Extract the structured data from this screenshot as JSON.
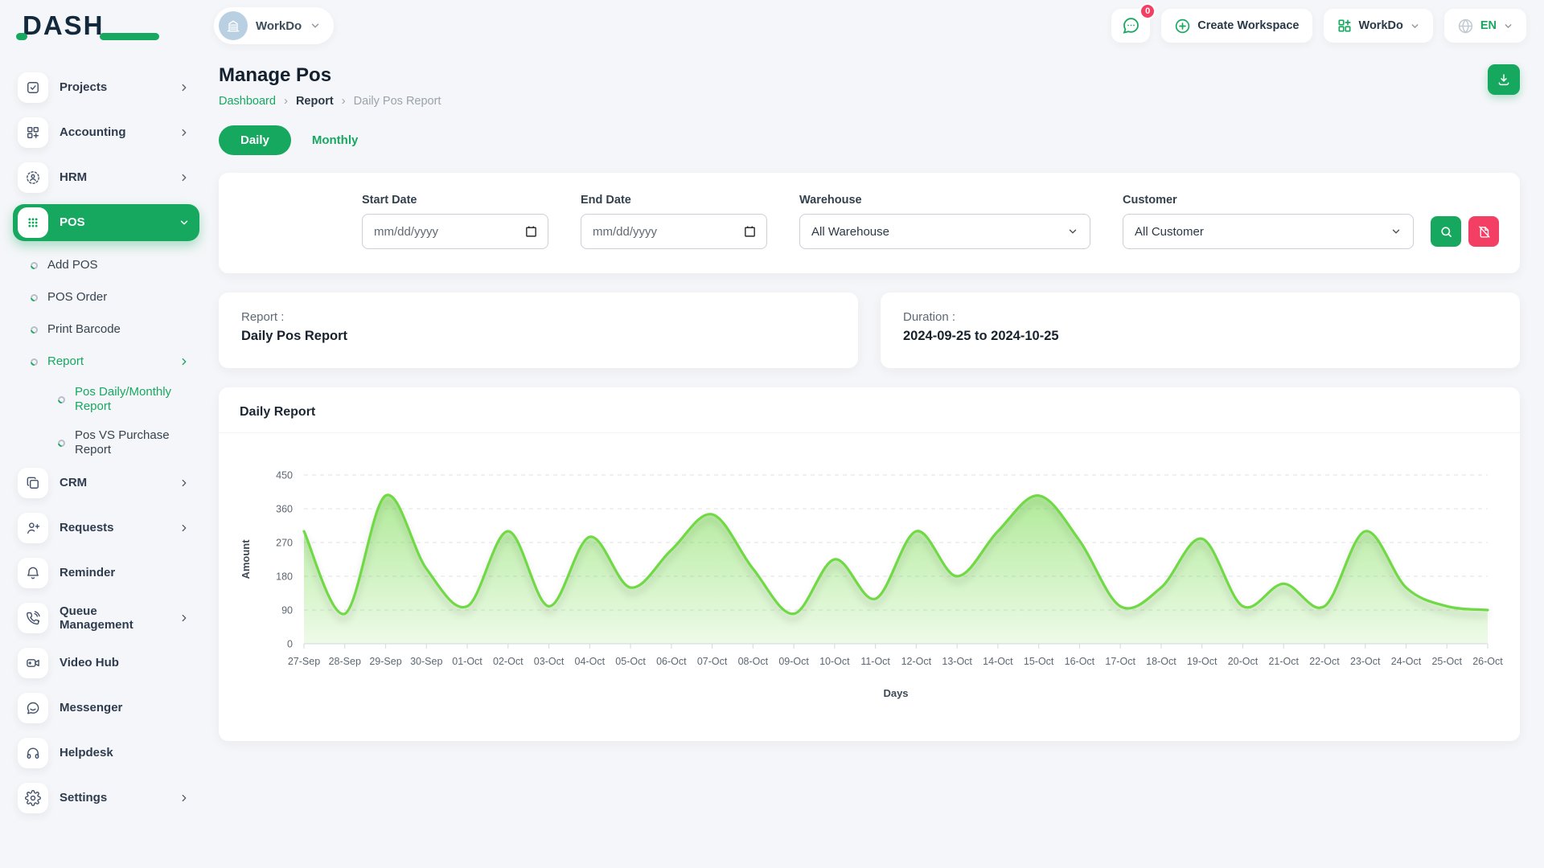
{
  "brand": {
    "name": "DASH"
  },
  "topbar": {
    "workspace_selector": "WorkDo",
    "messages_badge": "0",
    "create_workspace_label": "Create Workspace",
    "workspace_menu_label": "WorkDo",
    "language": "EN"
  },
  "sidebar": {
    "items": [
      {
        "label": "Projects"
      },
      {
        "label": "Accounting"
      },
      {
        "label": "HRM"
      },
      {
        "label": "POS"
      },
      {
        "label": "Add POS"
      },
      {
        "label": "POS Order"
      },
      {
        "label": "Print Barcode"
      },
      {
        "label": "Report"
      },
      {
        "label": "Pos Daily/Monthly Report"
      },
      {
        "label": "Pos VS Purchase Report"
      },
      {
        "label": "CRM"
      },
      {
        "label": "Requests"
      },
      {
        "label": "Reminder"
      },
      {
        "label": "Queue Management"
      },
      {
        "label": "Video Hub"
      },
      {
        "label": "Messenger"
      },
      {
        "label": "Helpdesk"
      },
      {
        "label": "Settings"
      }
    ]
  },
  "page": {
    "title": "Manage Pos",
    "breadcrumb": [
      "Dashboard",
      "Report",
      "Daily Pos Report"
    ],
    "tabs": {
      "daily": "Daily",
      "monthly": "Monthly"
    }
  },
  "filters": {
    "start_date": {
      "label": "Start Date",
      "placeholder": "mm/dd/yyyy"
    },
    "end_date": {
      "label": "End Date",
      "placeholder": "mm/dd/yyyy"
    },
    "warehouse": {
      "label": "Warehouse",
      "value": "All Warehouse"
    },
    "customer": {
      "label": "Customer",
      "value": "All Customer"
    }
  },
  "summary": {
    "report_label": "Report :",
    "report_value": "Daily Pos Report",
    "duration_label": "Duration :",
    "duration_value": "2024-09-25 to 2024-10-25"
  },
  "chart_card": {
    "title": "Daily Report"
  },
  "chart_data": {
    "type": "area",
    "title": "Daily Report",
    "xlabel": "Days",
    "ylabel": "Amount",
    "ylim": [
      0,
      450
    ],
    "yticks": [
      0,
      90,
      180,
      270,
      360,
      450
    ],
    "grid": "horizontal-dashed",
    "legend": "none",
    "line_color": "#6fd944",
    "fill_color": "#6fd944",
    "categories": [
      "27-Sep",
      "28-Sep",
      "29-Sep",
      "30-Sep",
      "01-Oct",
      "02-Oct",
      "03-Oct",
      "04-Oct",
      "05-Oct",
      "06-Oct",
      "07-Oct",
      "08-Oct",
      "09-Oct",
      "10-Oct",
      "11-Oct",
      "12-Oct",
      "13-Oct",
      "14-Oct",
      "15-Oct",
      "16-Oct",
      "17-Oct",
      "18-Oct",
      "19-Oct",
      "20-Oct",
      "21-Oct",
      "22-Oct",
      "23-Oct",
      "24-Oct",
      "25-Oct",
      "26-Oct"
    ],
    "values": [
      300,
      80,
      395,
      200,
      100,
      300,
      100,
      285,
      150,
      250,
      345,
      200,
      80,
      225,
      120,
      300,
      180,
      300,
      395,
      275,
      100,
      150,
      280,
      100,
      160,
      100,
      300,
      150,
      100,
      90
    ]
  },
  "colors": {
    "primary_green": "#17a860",
    "chart_green": "#6fd944",
    "danger_pink": "#f43f64",
    "text_dark": "#1f2a37",
    "muted": "#9aa3ad"
  }
}
